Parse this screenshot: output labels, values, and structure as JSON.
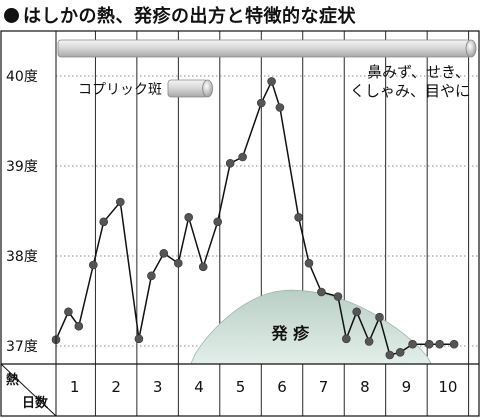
{
  "title": "●はしかの熱、発疹の出方と特徴的な症状",
  "title_text": "はしかの熱、発疹の出方と特徴的な症状",
  "colors": {
    "line": "#111111",
    "point": "#555555",
    "rash": "#c7dad3",
    "bar": "#cfcfcf"
  },
  "chart_data": {
    "type": "line",
    "xlabel": "日数",
    "ylabel": "熱",
    "x_ticks": [
      "1",
      "2",
      "3",
      "4",
      "5",
      "6",
      "7",
      "8",
      "9",
      "10"
    ],
    "y_ticks": [
      "37度",
      "38度",
      "39度",
      "40度"
    ],
    "y_tick_values": [
      37,
      38,
      39,
      40
    ],
    "xlim": [
      0.55,
      10.75
    ],
    "ylim": [
      36.8,
      40.5
    ],
    "grid": true,
    "series": [
      {
        "name": "",
        "x": [
          0.55,
          0.85,
          1.1,
          1.45,
          1.7,
          2.1,
          2.55,
          2.85,
          3.15,
          3.5,
          3.75,
          4.1,
          4.45,
          4.75,
          5.05,
          5.5,
          5.75,
          5.95,
          6.4,
          6.65,
          6.95,
          7.35,
          7.55,
          7.8,
          8.1,
          8.35,
          8.6,
          8.85,
          9.15,
          9.55,
          9.8,
          10.15
        ],
        "y": [
          37.07,
          37.38,
          37.22,
          37.9,
          38.38,
          38.6,
          37.08,
          37.78,
          38.03,
          37.92,
          38.43,
          37.88,
          38.38,
          39.03,
          39.1,
          39.7,
          39.94,
          39.65,
          38.43,
          37.92,
          37.6,
          37.55,
          37.08,
          37.38,
          37.05,
          37.32,
          36.9,
          36.93,
          37.02,
          37.02,
          37.02,
          37.02
        ]
      }
    ],
    "annotations": [
      {
        "label": "鼻みず、せき、くしゃみ、目やに",
        "line1": "鼻みず、せき、",
        "line2": "くしゃみ、目やに",
        "start": 0.55,
        "end": 10.75
      },
      {
        "label": "コプリック斑",
        "start": 3.25,
        "end": 4.35
      },
      {
        "label": "発 疹",
        "start": 3.8,
        "end": 9.6,
        "peak": 6.2
      }
    ]
  }
}
